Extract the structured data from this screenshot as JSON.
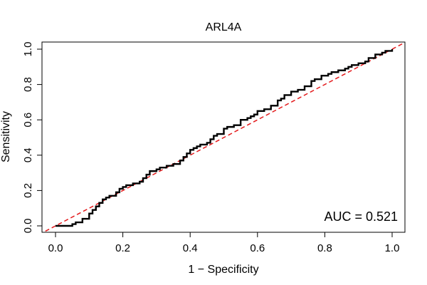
{
  "chart_data": {
    "type": "line",
    "title": "ARL4A",
    "xlabel": "1 − Specificity",
    "ylabel": "Sensitivity",
    "xlim": [
      0,
      1
    ],
    "ylim": [
      0,
      1
    ],
    "x_ticks": [
      "0.0",
      "0.2",
      "0.4",
      "0.6",
      "0.8",
      "1.0"
    ],
    "y_ticks": [
      "0.0",
      "0.2",
      "0.4",
      "0.6",
      "0.8",
      "1.0"
    ],
    "annotation": "AUC = 0.521",
    "grid": false,
    "colors": {
      "roc": "#000000",
      "reference": "#e41a1c"
    },
    "series": [
      {
        "style": "solid",
        "x": [
          0.0,
          0.01,
          0.05,
          0.06,
          0.08,
          0.1,
          0.11,
          0.12,
          0.13,
          0.14,
          0.15,
          0.16,
          0.18,
          0.19,
          0.2,
          0.21,
          0.23,
          0.25,
          0.26,
          0.27,
          0.28,
          0.3,
          0.31,
          0.33,
          0.35,
          0.37,
          0.38,
          0.39,
          0.4,
          0.41,
          0.42,
          0.43,
          0.45,
          0.46,
          0.47,
          0.48,
          0.5,
          0.51,
          0.53,
          0.55,
          0.57,
          0.58,
          0.59,
          0.6,
          0.62,
          0.64,
          0.66,
          0.67,
          0.68,
          0.7,
          0.72,
          0.74,
          0.76,
          0.77,
          0.79,
          0.81,
          0.82,
          0.84,
          0.86,
          0.87,
          0.88,
          0.9,
          0.92,
          0.93,
          0.95,
          0.97,
          0.98,
          1.0
        ],
        "y": [
          0.0,
          0.0,
          0.01,
          0.02,
          0.04,
          0.07,
          0.09,
          0.11,
          0.13,
          0.15,
          0.16,
          0.17,
          0.19,
          0.21,
          0.22,
          0.23,
          0.24,
          0.25,
          0.27,
          0.29,
          0.31,
          0.32,
          0.33,
          0.34,
          0.35,
          0.37,
          0.39,
          0.41,
          0.43,
          0.44,
          0.45,
          0.46,
          0.47,
          0.49,
          0.51,
          0.52,
          0.55,
          0.56,
          0.57,
          0.6,
          0.61,
          0.62,
          0.63,
          0.65,
          0.66,
          0.68,
          0.71,
          0.72,
          0.74,
          0.76,
          0.77,
          0.79,
          0.82,
          0.83,
          0.85,
          0.86,
          0.87,
          0.88,
          0.89,
          0.9,
          0.91,
          0.92,
          0.93,
          0.95,
          0.97,
          0.98,
          0.99,
          1.0
        ]
      },
      {
        "style": "dashed",
        "x": [
          -0.03,
          1.03
        ],
        "y": [
          -0.03,
          1.03
        ]
      }
    ]
  }
}
